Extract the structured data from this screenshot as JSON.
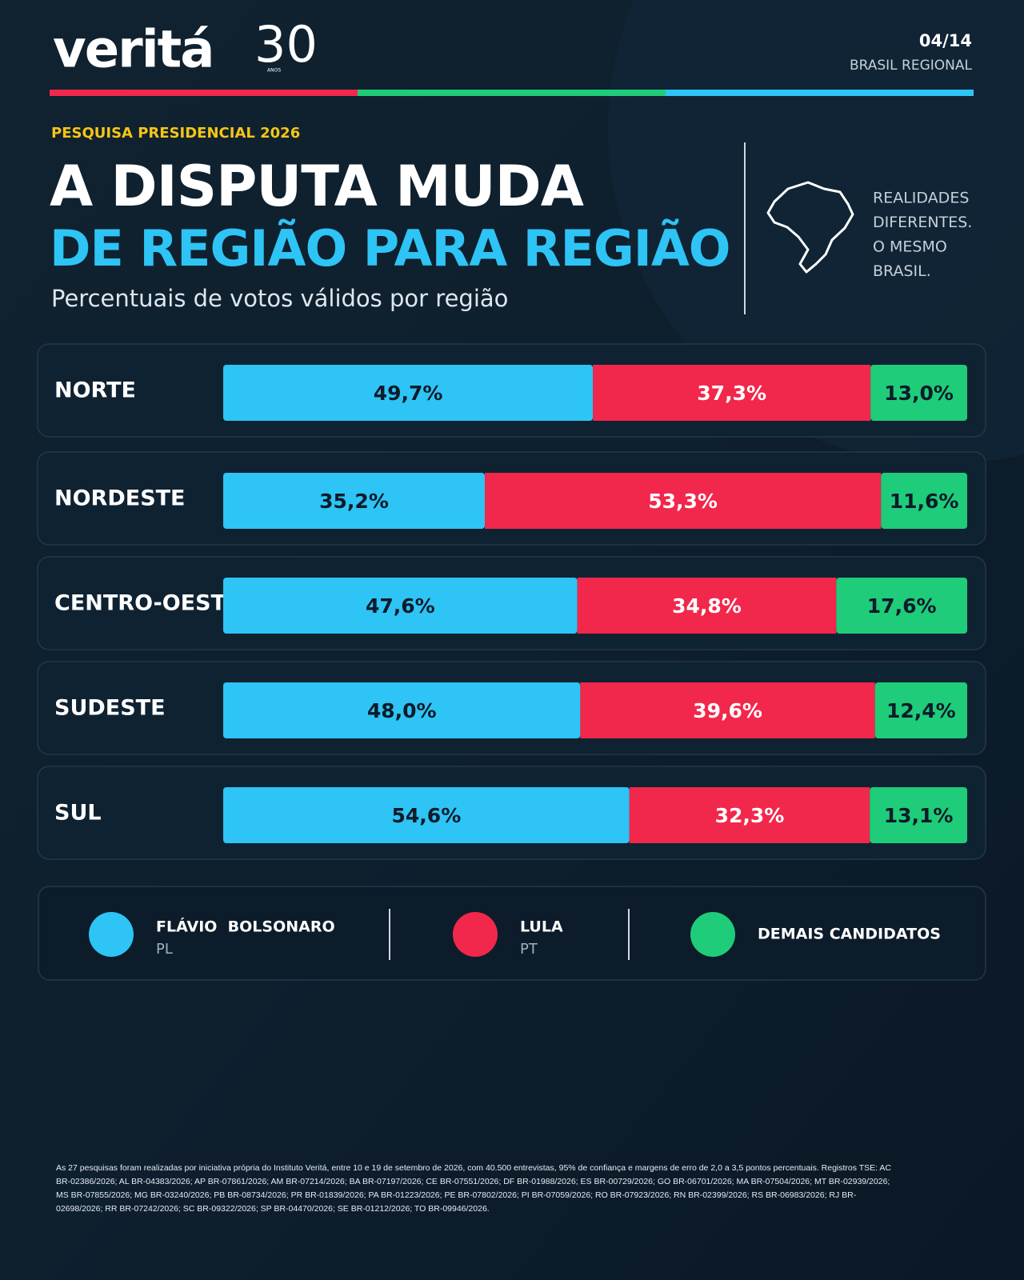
{
  "header": {
    "logo": "veritá",
    "logo_number": "30",
    "logo_sub": "ANOS",
    "page": "04/14",
    "section": "BRASIL REGIONAL"
  },
  "kicker": "PESQUISA PRESIDENCIAL 2026",
  "tagline": [
    "REALIDADES",
    "DIFERENTES.",
    "O MESMO",
    "BRASIL."
  ],
  "chart_data": {
    "type": "bar",
    "orientation": "horizontal",
    "stacked": true,
    "title": [
      "A DISPUTA MUDA",
      "DE REGIÃO PARA REGIÃO"
    ],
    "subtitle": "Percentuais de votos válidos por região",
    "categories": [
      "NORTE",
      "NORDESTE",
      "CENTRO-OESTE",
      "SUDESTE",
      "SUL"
    ],
    "series": [
      {
        "name": "FLÁVIO  BOLSONARO",
        "party": "PL",
        "color": "#2ec4f5",
        "label_color": "#0d1b2a",
        "values": [
          49.7,
          35.2,
          47.6,
          48.0,
          54.6
        ],
        "value_labels": [
          "49,7%",
          "35,2%",
          "47,6%",
          "48,0%",
          "54,6%"
        ]
      },
      {
        "name": "LULA",
        "party": "PT",
        "color": "#f2274c",
        "label_color": "#ffffff",
        "values": [
          37.3,
          53.3,
          34.8,
          39.6,
          32.3
        ],
        "value_labels": [
          "37,3%",
          "53,3%",
          "34,8%",
          "39,6%",
          "32,3%"
        ]
      },
      {
        "name": "DEMAIS CANDIDATOS",
        "color": "#1fcc79",
        "label_color": "#0d1b2a",
        "values": [
          13.0,
          11.6,
          17.6,
          12.4,
          13.1
        ],
        "value_labels": [
          "13,0%",
          "11,6%",
          "17,6%",
          "12,4%",
          "13,1%"
        ]
      }
    ]
  },
  "footnote": "As 27 pesquisas foram realizadas por iniciativa própria do Instituto Veritá, entre 10 e 19 de setembro de 2026, com 40.500 entrevistas, 95% de confiança e margens de erro de 2,0 a 3,5 pontos percentuais. Registros TSE: AC BR-02386/2026; AL BR-04383/2026; AP BR-07861/2026; AM BR-07214/2026; BA BR-07197/2026; CE BR-07551/2026; DF BR-01988/2026; ES BR-00729/2026; GO BR-06701/2026; MA BR-07504/2026; MT BR-02939/2026; MS BR-07855/2026; MG BR-03240/2026; PB BR-08734/2026; PR BR-01839/2026; PA BR-01223/2026; PE BR-07802/2026; PI BR-07059/2026; RO BR-07923/2026; RN BR-02399/2026; RS BR-06983/2026; RJ BR-02698/2026; RR BR-07242/2026; SC BR-09322/2026; SP BR-04470/2026; SE BR-01212/2026; TO BR-09946/2026."
}
